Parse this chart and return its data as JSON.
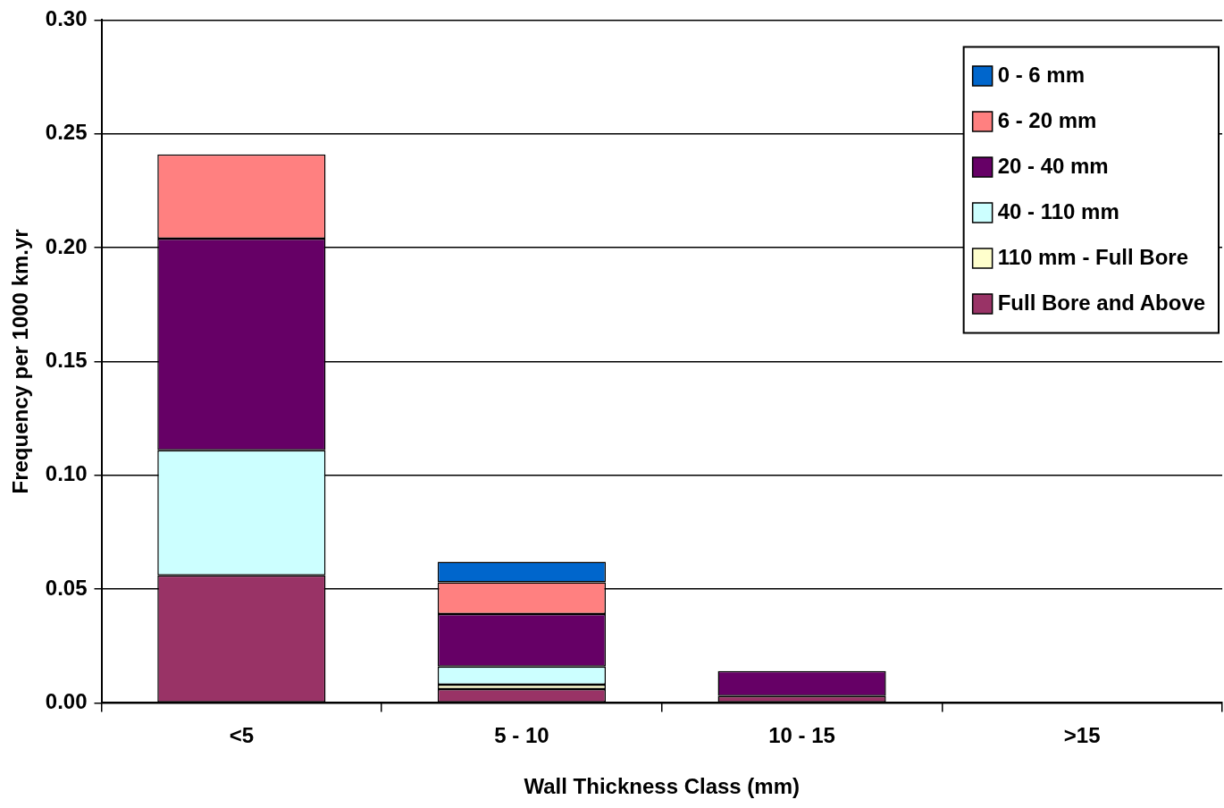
{
  "chart_data": {
    "type": "bar",
    "stacked": true,
    "xlabel": "Wall Thickness Class (mm)",
    "ylabel": "Frequency per 1000 km.yr",
    "categories": [
      "<5",
      "5 - 10",
      "10 - 15",
      ">15"
    ],
    "series": [
      {
        "name": "Full Bore and Above",
        "color": "#993366",
        "values": [
          0.056,
          0.006,
          0.003,
          0
        ]
      },
      {
        "name": "110 mm - Full Bore",
        "color": "#ffffcc",
        "values": [
          0,
          0.002,
          0,
          0
        ]
      },
      {
        "name": "40 - 110 mm",
        "color": "#ccffff",
        "values": [
          0.055,
          0.008,
          0,
          0
        ]
      },
      {
        "name": "20 - 40 mm",
        "color": "#660066",
        "values": [
          0.093,
          0.023,
          0.011,
          0
        ]
      },
      {
        "name": "6 - 20 mm",
        "color": "#ff8080",
        "values": [
          0.037,
          0.014,
          0,
          0
        ]
      },
      {
        "name": "0 - 6 mm",
        "color": "#0066cc",
        "values": [
          0,
          0.009,
          0,
          0
        ]
      }
    ],
    "ylim": [
      0,
      0.3
    ],
    "yticks": [
      {
        "value": 0,
        "label": "0.00"
      },
      {
        "value": 0.05,
        "label": "0.05"
      },
      {
        "value": 0.1,
        "label": "0.10"
      },
      {
        "value": 0.15,
        "label": "0.15"
      },
      {
        "value": 0.2,
        "label": "0.20"
      },
      {
        "value": 0.25,
        "label": "0.25"
      },
      {
        "value": 0.3,
        "label": "0.30"
      }
    ],
    "grid": "y",
    "legend": "top right"
  }
}
